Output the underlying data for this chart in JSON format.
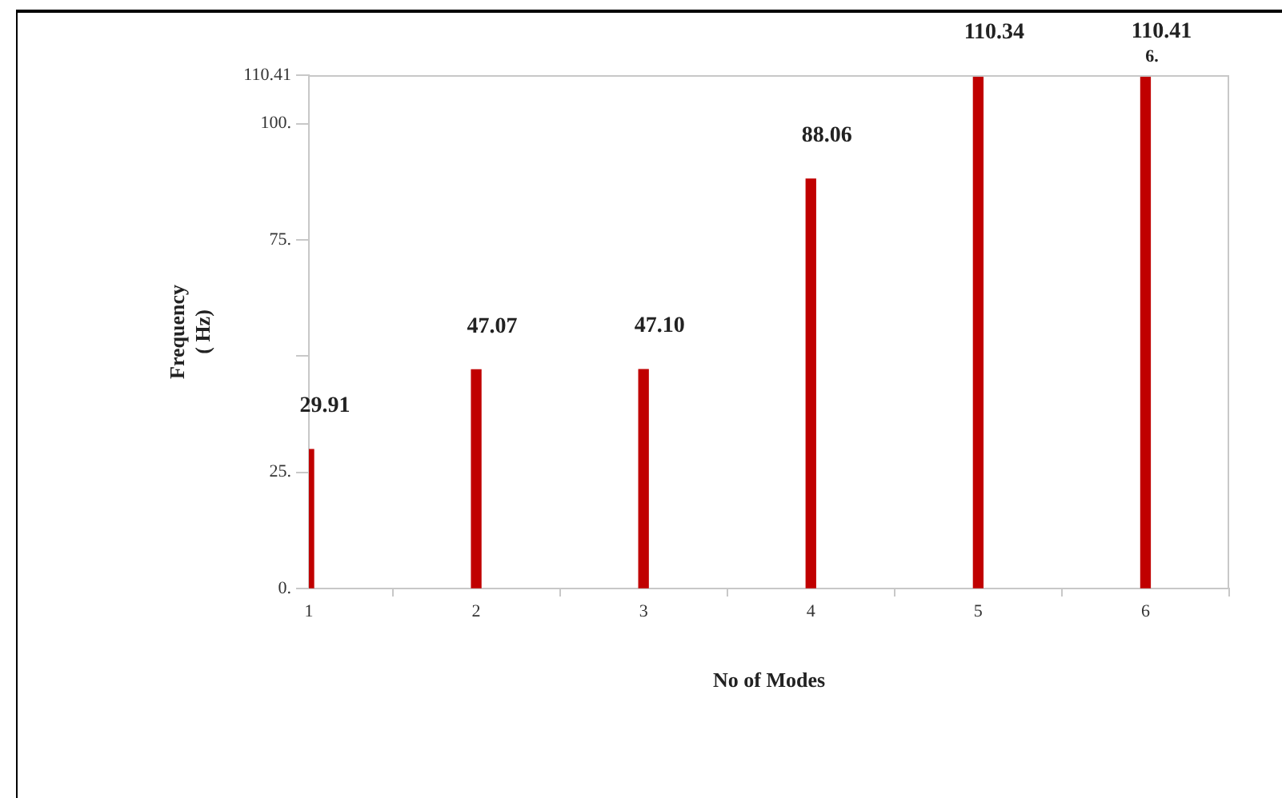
{
  "chart_data": {
    "type": "bar",
    "xlabel": "No of Modes",
    "ylabel": "Frequency\n( Hz)",
    "x": [
      1,
      2,
      3,
      4,
      5,
      6
    ],
    "values": [
      29.91,
      47.07,
      47.1,
      88.06,
      110.34,
      110.41
    ],
    "color": "#c00000",
    "value_labels": [
      "29.91",
      "47.07",
      "47.10",
      "88.06",
      "110.34",
      "110.41"
    ],
    "xlim": [
      1,
      6.5
    ],
    "xticks": [
      1,
      2,
      3,
      4,
      5,
      6
    ],
    "ylim": [
      0,
      110.41
    ],
    "yticks": [
      {
        "value": 0,
        "label": "0."
      },
      {
        "value": 25,
        "label": "25."
      },
      {
        "value": 50,
        "label": null
      },
      {
        "value": 75,
        "label": "75."
      },
      {
        "value": 100,
        "label": "100."
      },
      110.41
    ],
    "annotations": [
      {
        "text": "6.",
        "x": 6,
        "y": 110.41
      }
    ],
    "grid": false,
    "legend": false
  }
}
